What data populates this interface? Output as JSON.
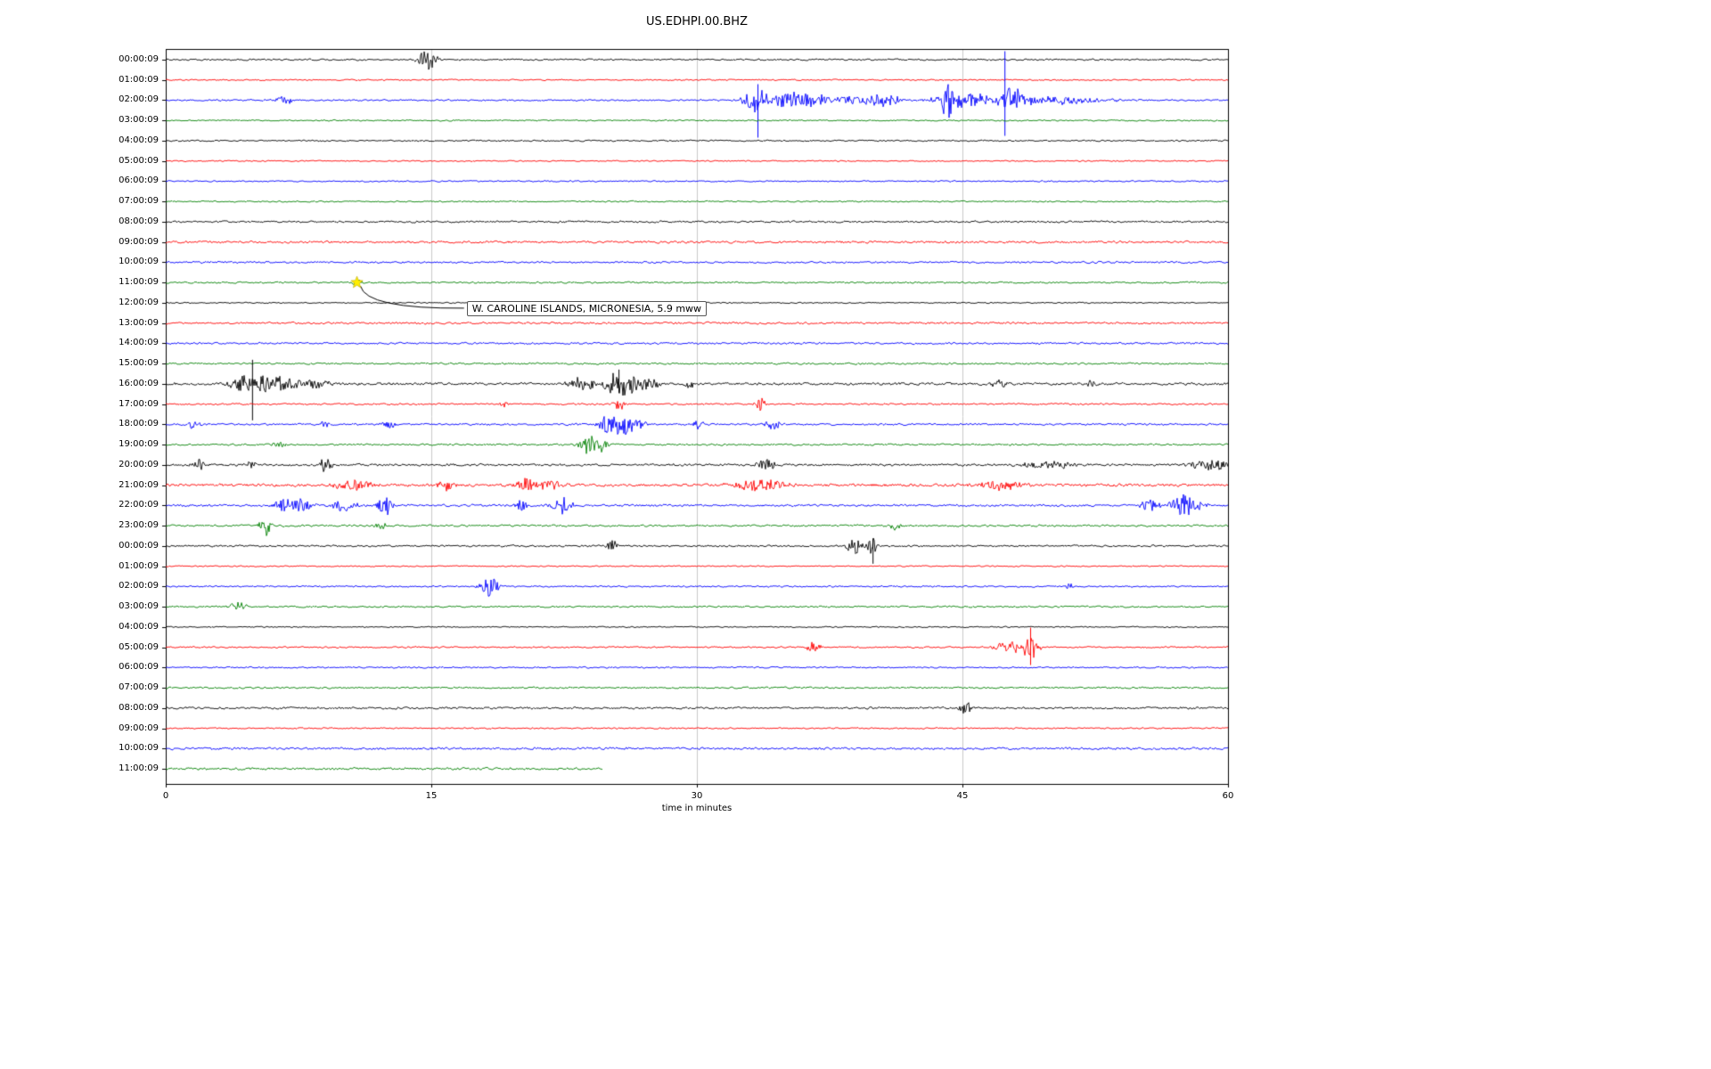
{
  "chart_data": {
    "type": "line",
    "title": "US.EDHPI.00.BHZ",
    "xlabel": "time in minutes",
    "xlim": [
      0,
      60
    ],
    "xticks": [
      0,
      15,
      30,
      45,
      60
    ],
    "grid_x": [
      15,
      30,
      45
    ],
    "trace_colors": [
      "#000000",
      "#ff0000",
      "#0000ff",
      "#008000"
    ],
    "annotation": {
      "text": "W. CAROLINE ISLANDS, MICRONESIA, 5.9 mww",
      "row": 11,
      "x_minutes": 10.8,
      "marker": "star-icon",
      "marker_color": "#ffee00"
    },
    "rows": [
      {
        "label": "00:00:09",
        "color": "#000000",
        "noise": 1.2,
        "events": [
          {
            "x": 14.4,
            "w": 0.3,
            "amp": 5
          },
          {
            "x": 14.9,
            "w": 0.4,
            "amp": 9
          }
        ]
      },
      {
        "label": "01:00:09",
        "color": "#ff0000",
        "noise": 1.0,
        "events": []
      },
      {
        "label": "02:00:09",
        "color": "#0000ff",
        "noise": 1.2,
        "events": [
          {
            "x": 6.7,
            "w": 0.4,
            "amp": 5
          },
          {
            "x": 33.3,
            "w": 0.6,
            "amp": 13
          },
          {
            "x": 35.2,
            "w": 1.5,
            "amp": 7
          },
          {
            "x": 37.5,
            "w": 2.5,
            "amp": 4
          },
          {
            "x": 40.5,
            "w": 1.0,
            "amp": 6
          },
          {
            "x": 44.3,
            "w": 0.6,
            "amp": 15
          },
          {
            "x": 45.5,
            "w": 2.0,
            "amp": 6
          },
          {
            "x": 47.8,
            "w": 1.0,
            "amp": 10
          },
          {
            "x": 50.0,
            "w": 3.0,
            "amp": 4
          }
        ],
        "spikes": [
          {
            "x": 33.45,
            "up": 18,
            "down": 42
          },
          {
            "x": 47.4,
            "up": 55,
            "down": 40
          }
        ]
      },
      {
        "label": "03:00:09",
        "color": "#008000",
        "noise": 1.0,
        "events": []
      },
      {
        "label": "04:00:09",
        "color": "#000000",
        "noise": 1.1,
        "events": []
      },
      {
        "label": "05:00:09",
        "color": "#ff0000",
        "noise": 0.9,
        "events": []
      },
      {
        "label": "06:00:09",
        "color": "#0000ff",
        "noise": 1.0,
        "events": []
      },
      {
        "label": "07:00:09",
        "color": "#008000",
        "noise": 1.0,
        "events": []
      },
      {
        "label": "08:00:09",
        "color": "#000000",
        "noise": 1.4,
        "events": []
      },
      {
        "label": "09:00:09",
        "color": "#ff0000",
        "noise": 1.6,
        "events": []
      },
      {
        "label": "10:00:09",
        "color": "#0000ff",
        "noise": 1.4,
        "events": []
      },
      {
        "label": "11:00:09",
        "color": "#008000",
        "noise": 1.2,
        "events": [
          {
            "x": 10.8,
            "w": 0.3,
            "amp": 3
          }
        ]
      },
      {
        "label": "12:00:09",
        "color": "#000000",
        "noise": 0.9,
        "events": []
      },
      {
        "label": "13:00:09",
        "color": "#ff0000",
        "noise": 1.5,
        "events": []
      },
      {
        "label": "14:00:09",
        "color": "#0000ff",
        "noise": 1.4,
        "events": []
      },
      {
        "label": "15:00:09",
        "color": "#008000",
        "noise": 1.3,
        "events": []
      },
      {
        "label": "16:00:09",
        "color": "#000000",
        "noise": 1.8,
        "events": [
          {
            "x": 4.2,
            "w": 0.6,
            "amp": 8
          },
          {
            "x": 5.6,
            "w": 0.9,
            "amp": 8
          },
          {
            "x": 6.8,
            "w": 1.2,
            "amp": 5
          },
          {
            "x": 8.2,
            "w": 1.0,
            "amp": 4
          },
          {
            "x": 23.5,
            "w": 0.8,
            "amp": 6
          },
          {
            "x": 25.3,
            "w": 0.5,
            "amp": 12
          },
          {
            "x": 26.1,
            "w": 0.7,
            "amp": 10
          },
          {
            "x": 27.3,
            "w": 0.6,
            "amp": 6
          },
          {
            "x": 29.6,
            "w": 0.3,
            "amp": 6
          },
          {
            "x": 47.1,
            "w": 0.4,
            "amp": 4
          },
          {
            "x": 52.2,
            "w": 0.3,
            "amp": 4
          }
        ],
        "spikes": [
          {
            "x": 4.9,
            "up": 27,
            "down": 41
          },
          {
            "x": 25.6,
            "up": 16,
            "down": 10
          }
        ]
      },
      {
        "label": "17:00:09",
        "color": "#ff0000",
        "noise": 1.2,
        "events": [
          {
            "x": 19.1,
            "w": 0.2,
            "amp": 4
          },
          {
            "x": 25.6,
            "w": 0.3,
            "amp": 6
          },
          {
            "x": 33.6,
            "w": 0.3,
            "amp": 7
          }
        ]
      },
      {
        "label": "18:00:09",
        "color": "#0000ff",
        "noise": 1.4,
        "events": [
          {
            "x": 1.6,
            "w": 0.3,
            "amp": 5
          },
          {
            "x": 9.0,
            "w": 0.3,
            "amp": 4
          },
          {
            "x": 12.6,
            "w": 0.4,
            "amp": 4
          },
          {
            "x": 25.0,
            "w": 0.5,
            "amp": 9
          },
          {
            "x": 25.8,
            "w": 0.5,
            "amp": 11
          },
          {
            "x": 26.6,
            "w": 0.5,
            "amp": 6
          },
          {
            "x": 30.1,
            "w": 0.3,
            "amp": 5
          },
          {
            "x": 34.2,
            "w": 0.5,
            "amp": 5
          }
        ]
      },
      {
        "label": "19:00:09",
        "color": "#008000",
        "noise": 1.3,
        "events": [
          {
            "x": 6.4,
            "w": 0.3,
            "amp": 4
          },
          {
            "x": 23.9,
            "w": 0.5,
            "amp": 10
          },
          {
            "x": 24.5,
            "w": 0.5,
            "amp": 6
          }
        ]
      },
      {
        "label": "20:00:09",
        "color": "#000000",
        "noise": 1.6,
        "events": [
          {
            "x": 1.9,
            "w": 0.4,
            "amp": 5
          },
          {
            "x": 4.8,
            "w": 0.3,
            "amp": 4
          },
          {
            "x": 9.0,
            "w": 0.4,
            "amp": 6
          },
          {
            "x": 33.9,
            "w": 0.5,
            "amp": 6
          },
          {
            "x": 49.8,
            "w": 1.5,
            "amp": 4
          },
          {
            "x": 59.0,
            "w": 1.2,
            "amp": 5
          }
        ]
      },
      {
        "label": "21:00:09",
        "color": "#ff0000",
        "noise": 2.0,
        "events": [
          {
            "x": 10.6,
            "w": 1.0,
            "amp": 5
          },
          {
            "x": 15.8,
            "w": 0.4,
            "amp": 7
          },
          {
            "x": 20.3,
            "w": 0.5,
            "amp": 7
          },
          {
            "x": 21.8,
            "w": 0.8,
            "amp": 5
          },
          {
            "x": 33.6,
            "w": 1.5,
            "amp": 5
          },
          {
            "x": 47.2,
            "w": 1.2,
            "amp": 5
          }
        ]
      },
      {
        "label": "22:00:09",
        "color": "#0000ff",
        "noise": 1.6,
        "events": [
          {
            "x": 6.6,
            "w": 0.5,
            "amp": 6
          },
          {
            "x": 7.6,
            "w": 0.6,
            "amp": 7
          },
          {
            "x": 10.1,
            "w": 0.6,
            "amp": 6
          },
          {
            "x": 12.4,
            "w": 0.4,
            "amp": 9
          },
          {
            "x": 20.1,
            "w": 0.4,
            "amp": 5
          },
          {
            "x": 22.4,
            "w": 0.5,
            "amp": 9
          },
          {
            "x": 55.6,
            "w": 0.5,
            "amp": 6
          },
          {
            "x": 57.6,
            "w": 0.8,
            "amp": 10
          }
        ]
      },
      {
        "label": "23:00:09",
        "color": "#008000",
        "noise": 1.4,
        "events": [
          {
            "x": 5.6,
            "w": 0.3,
            "amp": 11
          },
          {
            "x": 12.1,
            "w": 0.3,
            "amp": 5
          },
          {
            "x": 41.2,
            "w": 0.3,
            "amp": 5
          }
        ]
      },
      {
        "label": "00:00:09",
        "color": "#000000",
        "noise": 1.3,
        "events": [
          {
            "x": 25.2,
            "w": 0.3,
            "amp": 6
          },
          {
            "x": 38.9,
            "w": 0.5,
            "amp": 8
          },
          {
            "x": 39.9,
            "w": 0.3,
            "amp": 8
          }
        ],
        "spikes": [
          {
            "x": 39.95,
            "up": 8,
            "down": 20
          }
        ]
      },
      {
        "label": "01:00:09",
        "color": "#ff0000",
        "noise": 0.9,
        "events": []
      },
      {
        "label": "02:00:09",
        "color": "#0000ff",
        "noise": 1.1,
        "events": [
          {
            "x": 18.3,
            "w": 0.5,
            "amp": 10
          },
          {
            "x": 51.0,
            "w": 0.2,
            "amp": 4
          }
        ]
      },
      {
        "label": "03:00:09",
        "color": "#008000",
        "noise": 1.2,
        "events": [
          {
            "x": 4.1,
            "w": 0.4,
            "amp": 6
          }
        ]
      },
      {
        "label": "04:00:09",
        "color": "#000000",
        "noise": 0.9,
        "events": []
      },
      {
        "label": "05:00:09",
        "color": "#ff0000",
        "noise": 1.1,
        "events": [
          {
            "x": 36.6,
            "w": 0.4,
            "amp": 6
          },
          {
            "x": 47.9,
            "w": 0.9,
            "amp": 7
          },
          {
            "x": 48.9,
            "w": 0.4,
            "amp": 10
          }
        ],
        "spikes": [
          {
            "x": 48.85,
            "up": 22,
            "down": 20
          }
        ]
      },
      {
        "label": "06:00:09",
        "color": "#0000ff",
        "noise": 1.1,
        "events": []
      },
      {
        "label": "07:00:09",
        "color": "#008000",
        "noise": 1.2,
        "events": []
      },
      {
        "label": "08:00:09",
        "color": "#000000",
        "noise": 1.5,
        "events": [
          {
            "x": 45.2,
            "w": 0.3,
            "amp": 7
          }
        ]
      },
      {
        "label": "09:00:09",
        "color": "#ff0000",
        "noise": 1.0,
        "events": []
      },
      {
        "label": "10:00:09",
        "color": "#0000ff",
        "noise": 1.7,
        "events": []
      },
      {
        "label": "11:00:09",
        "color": "#008000",
        "noise": 1.7,
        "events": [],
        "x_end": 24.7
      }
    ]
  }
}
